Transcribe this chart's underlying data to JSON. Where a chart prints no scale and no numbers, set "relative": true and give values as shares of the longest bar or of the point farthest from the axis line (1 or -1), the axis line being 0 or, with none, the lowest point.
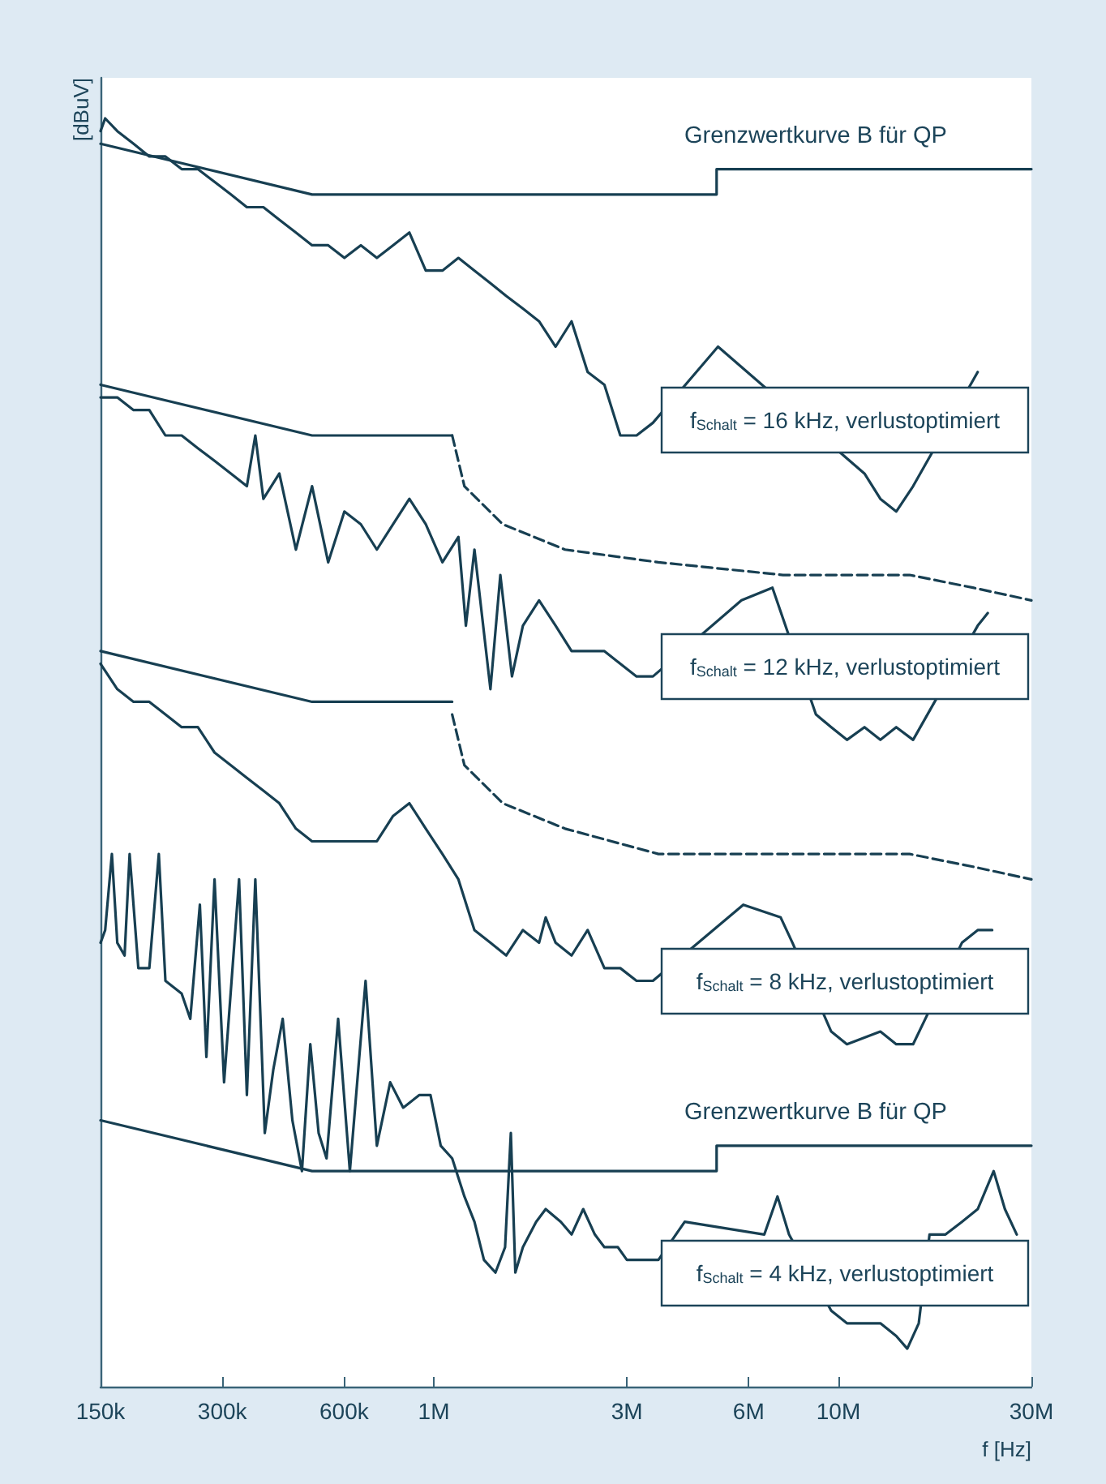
{
  "chart_data": {
    "type": "line",
    "relative": true,
    "xlabel": "f [Hz]",
    "ylabel": "[dBuV]",
    "log": "x",
    "marker": "none",
    "line_style": "solid",
    "tick_labels": "x",
    "xlim": [
      150000,
      30000000
    ],
    "xticks": [
      {
        "value": 150000,
        "label": "150k"
      },
      {
        "value": 300000,
        "label": "300k"
      },
      {
        "value": 600000,
        "label": "600k"
      },
      {
        "value": 1000000,
        "label": "1M"
      },
      {
        "value": 3000000,
        "label": "3M"
      },
      {
        "value": 6000000,
        "label": "6M"
      },
      {
        "value": 10000000,
        "label": "10M"
      },
      {
        "value": 30000000,
        "label": "30M"
      }
    ],
    "annotations": [
      "f$_{Schalt}$ = 16 kHz, verlustoptimiert",
      "f$_{Schalt}$ = 12 kHz, verlustoptimiert",
      "f$_{Schalt}$ = 8 kHz, verlustoptimiert",
      "f$_{Schalt}$ = 4 kHz, verlustoptimiert"
    ],
    "series": [
      {
        "color": "#173f52",
        "x": [
          150000,
          154000,
          165000,
          181000,
          198000,
          217000,
          238000,
          261000,
          287000,
          315000,
          345000,
          379000,
          415000,
          456000,
          500000,
          548000,
          601000,
          660000,
          723000,
          793000,
          870000,
          955000,
          1050000,
          1150000,
          1260000,
          1380000,
          1510000,
          1660000,
          1820000,
          2000000,
          2190000,
          2400000,
          2640000,
          2890000,
          3170000,
          3480000,
          5040000,
          11600000,
          12700000,
          13900000,
          15300000,
          22100000
        ],
        "values": [
          0.99,
          1.0,
          0.99,
          0.98,
          0.97,
          0.97,
          0.96,
          0.96,
          0.95,
          0.94,
          0.93,
          0.93,
          0.92,
          0.91,
          0.9,
          0.9,
          0.89,
          0.9,
          0.89,
          0.9,
          0.91,
          0.88,
          0.88,
          0.89,
          0.88,
          0.87,
          0.86,
          0.85,
          0.84,
          0.82,
          0.84,
          0.8,
          0.79,
          0.75,
          0.75,
          0.76,
          0.82,
          0.72,
          0.7,
          0.69,
          0.71,
          0.8
        ]
      },
      {
        "name": "Grenzwertkurve B für QP",
        "color": "#173f52",
        "x": [
          150000,
          500000,
          5000000,
          5000000,
          30000000
        ],
        "values": [
          0.98,
          0.94,
          0.94,
          0.96,
          0.96
        ]
      },
      {
        "color": "#173f52",
        "x": [
          150000,
          165000,
          181000,
          198000,
          217000,
          238000,
          261000,
          287000,
          315000,
          345000,
          362000,
          379000,
          415000,
          456000,
          500000,
          548000,
          601000,
          660000,
          723000,
          793000,
          870000,
          955000,
          1050000,
          1150000,
          1200000,
          1260000,
          1380000,
          1460000,
          1560000,
          1660000,
          1820000,
          2000000,
          2190000,
          2400000,
          2640000,
          2890000,
          3170000,
          3480000,
          5760000,
          6870000,
          8800000,
          9600000,
          10500000,
          11600000,
          12700000,
          13900000,
          15300000,
          22100000,
          23400000
        ],
        "values": [
          0.78,
          0.78,
          0.77,
          0.77,
          0.75,
          0.75,
          0.74,
          0.73,
          0.72,
          0.71,
          0.75,
          0.7,
          0.72,
          0.66,
          0.71,
          0.65,
          0.69,
          0.68,
          0.66,
          0.68,
          0.7,
          0.68,
          0.65,
          0.67,
          0.6,
          0.66,
          0.55,
          0.64,
          0.56,
          0.6,
          0.62,
          0.6,
          0.58,
          0.58,
          0.58,
          0.57,
          0.56,
          0.56,
          0.62,
          0.63,
          0.53,
          0.52,
          0.51,
          0.52,
          0.51,
          0.52,
          0.51,
          0.6,
          0.61
        ]
      },
      {
        "color": "#173f52",
        "x": [
          150000,
          500000,
          1110000
        ],
        "values": [
          0.79,
          0.75,
          0.75
        ]
      },
      {
        "color": "#173f52",
        "line_style": "dashed",
        "x": [
          1110000,
          1190000,
          1480000,
          2110000,
          3590000,
          7300000,
          15000000,
          21500000,
          30000000
        ],
        "values": [
          0.75,
          0.71,
          0.68,
          0.66,
          0.65,
          0.64,
          0.64,
          0.63,
          0.62
        ]
      },
      {
        "color": "#173f52",
        "x": [
          150000,
          165000,
          181000,
          198000,
          217000,
          238000,
          261000,
          287000,
          315000,
          345000,
          379000,
          415000,
          456000,
          500000,
          548000,
          601000,
          660000,
          723000,
          793000,
          870000,
          955000,
          1050000,
          1150000,
          1260000,
          1380000,
          1510000,
          1660000,
          1820000,
          1890000,
          2000000,
          2190000,
          2400000,
          2640000,
          2890000,
          3170000,
          3480000,
          5820000,
          7200000,
          7700000,
          9600000,
          10500000,
          12700000,
          13900000,
          15300000,
          20200000,
          22100000,
          24000000
        ],
        "values": [
          0.57,
          0.55,
          0.54,
          0.54,
          0.53,
          0.52,
          0.52,
          0.5,
          0.49,
          0.48,
          0.47,
          0.46,
          0.44,
          0.43,
          0.43,
          0.43,
          0.43,
          0.43,
          0.45,
          0.46,
          0.44,
          0.42,
          0.4,
          0.36,
          0.35,
          0.34,
          0.36,
          0.35,
          0.37,
          0.35,
          0.34,
          0.36,
          0.33,
          0.33,
          0.32,
          0.32,
          0.38,
          0.37,
          0.35,
          0.28,
          0.27,
          0.28,
          0.27,
          0.27,
          0.35,
          0.36,
          0.36
        ]
      },
      {
        "color": "#173f52",
        "x": [
          150000,
          500000,
          1110000
        ],
        "values": [
          0.58,
          0.54,
          0.54
        ]
      },
      {
        "color": "#173f52",
        "line_style": "dashed",
        "x": [
          1110000,
          1190000,
          1480000,
          2110000,
          3590000,
          7300000,
          15000000,
          21500000,
          30000000
        ],
        "values": [
          0.53,
          0.49,
          0.46,
          0.44,
          0.42,
          0.42,
          0.42,
          0.41,
          0.4
        ]
      },
      {
        "color": "#173f52",
        "x": [
          150000,
          154000,
          160000,
          165000,
          172000,
          177000,
          186000,
          198000,
          209000,
          217000,
          238000,
          250000,
          264000,
          274000,
          287000,
          303000,
          330000,
          345000,
          362000,
          382000,
          401000,
          423000,
          447000,
          472000,
          495000,
          519000,
          543000,
          580000,
          620000,
          678000,
          723000,
          780000,
          840000,
          921000,
          981000,
          1040000,
          1110000,
          1190000,
          1260000,
          1330000,
          1420000,
          1500000,
          1550000,
          1590000,
          1660000,
          1790000,
          1890000,
          2060000,
          2190000,
          2340000,
          2500000,
          2640000,
          2850000,
          3000000,
          3270000,
          3590000,
          4170000,
          6560000,
          7070000,
          7550000,
          9600000,
          10500000,
          11600000,
          12700000,
          13900000,
          14800000,
          15800000,
          16800000,
          18400000,
          20200000,
          22100000,
          24200000,
          25800000,
          27600000
        ],
        "values": [
          0.35,
          0.36,
          0.42,
          0.35,
          0.34,
          0.42,
          0.33,
          0.33,
          0.42,
          0.32,
          0.31,
          0.29,
          0.38,
          0.26,
          0.4,
          0.24,
          0.4,
          0.23,
          0.4,
          0.2,
          0.25,
          0.29,
          0.21,
          0.17,
          0.27,
          0.2,
          0.18,
          0.29,
          0.17,
          0.32,
          0.19,
          0.24,
          0.22,
          0.23,
          0.23,
          0.19,
          0.18,
          0.15,
          0.13,
          0.1,
          0.09,
          0.11,
          0.2,
          0.09,
          0.11,
          0.13,
          0.14,
          0.13,
          0.12,
          0.14,
          0.12,
          0.11,
          0.11,
          0.1,
          0.1,
          0.1,
          0.13,
          0.12,
          0.15,
          0.12,
          0.06,
          0.05,
          0.05,
          0.05,
          0.04,
          0.03,
          0.05,
          0.12,
          0.12,
          0.13,
          0.14,
          0.17,
          0.14,
          0.12
        ]
      },
      {
        "name": "Grenzwertkurve B für QP",
        "color": "#173f52",
        "x": [
          150000,
          500000,
          5000000,
          5000000,
          30000000
        ],
        "values": [
          0.21,
          0.17,
          0.17,
          0.19,
          0.19
        ]
      }
    ]
  }
}
